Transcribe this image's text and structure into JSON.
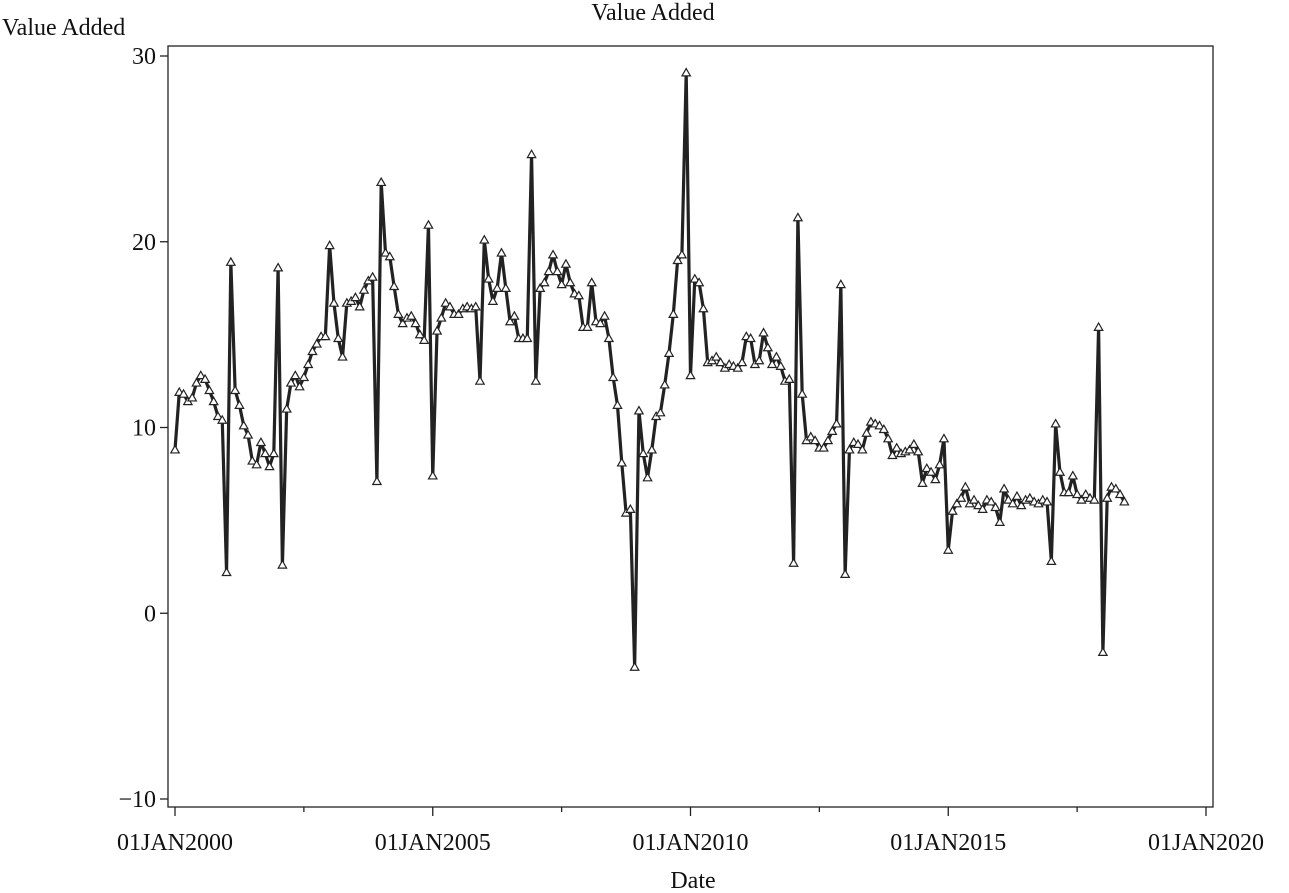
{
  "chart_data": {
    "type": "line",
    "title": "Value Added",
    "ylabel": "Value Added",
    "xlabel": "Date",
    "x_scale": "date",
    "xlim": [
      "2000-01-01",
      "2020-01-01"
    ],
    "ylim": [
      -10,
      30
    ],
    "yticks": [
      -10,
      0,
      10,
      20,
      30
    ],
    "xticks": [
      {
        "date": "2000-01-01",
        "label": "01JAN2000"
      },
      {
        "date": "2005-01-01",
        "label": "01JAN2005"
      },
      {
        "date": "2010-01-01",
        "label": "01JAN2010"
      },
      {
        "date": "2015-01-01",
        "label": "01JAN2015"
      },
      {
        "date": "2020-01-01",
        "label": "01JAN2020"
      }
    ],
    "grid": false,
    "legend": "none",
    "colors": {
      "line": "#222222",
      "marker_fill": "#ffffff"
    },
    "series": [
      {
        "x": [
          "2000-01",
          "2000-02",
          "2000-03",
          "2000-04",
          "2000-05",
          "2000-06",
          "2000-07",
          "2000-08",
          "2000-09",
          "2000-10",
          "2000-11",
          "2000-12",
          "2001-01",
          "2001-02",
          "2001-03",
          "2001-04",
          "2001-05",
          "2001-06",
          "2001-07",
          "2001-08",
          "2001-09",
          "2001-10",
          "2001-11",
          "2001-12",
          "2002-01",
          "2002-02",
          "2002-03",
          "2002-04",
          "2002-05",
          "2002-06",
          "2002-07",
          "2002-08",
          "2002-09",
          "2002-10",
          "2002-11",
          "2002-12",
          "2003-01",
          "2003-02",
          "2003-03",
          "2003-04",
          "2003-05",
          "2003-06",
          "2003-07",
          "2003-08",
          "2003-09",
          "2003-10",
          "2003-11",
          "2003-12",
          "2004-01",
          "2004-02",
          "2004-03",
          "2004-04",
          "2004-05",
          "2004-06",
          "2004-07",
          "2004-08",
          "2004-09",
          "2004-10",
          "2004-11",
          "2004-12",
          "2005-01",
          "2005-02",
          "2005-03",
          "2005-04",
          "2005-05",
          "2005-06",
          "2005-07",
          "2005-08",
          "2005-09",
          "2005-10",
          "2005-11",
          "2005-12",
          "2006-01",
          "2006-02",
          "2006-03",
          "2006-04",
          "2006-05",
          "2006-06",
          "2006-07",
          "2006-08",
          "2006-09",
          "2006-10",
          "2006-11",
          "2006-12",
          "2007-01",
          "2007-02",
          "2007-03",
          "2007-04",
          "2007-05",
          "2007-06",
          "2007-07",
          "2007-08",
          "2007-09",
          "2007-10",
          "2007-11",
          "2007-12",
          "2008-01",
          "2008-02",
          "2008-03",
          "2008-04",
          "2008-05",
          "2008-06",
          "2008-07",
          "2008-08",
          "2008-09",
          "2008-10",
          "2008-11",
          "2008-12",
          "2009-01",
          "2009-02",
          "2009-03",
          "2009-04",
          "2009-05",
          "2009-06",
          "2009-07",
          "2009-08",
          "2009-09",
          "2009-10",
          "2009-11",
          "2009-12",
          "2010-01",
          "2010-02",
          "2010-03",
          "2010-04",
          "2010-05",
          "2010-06",
          "2010-07",
          "2010-08",
          "2010-09",
          "2010-10",
          "2010-11",
          "2010-12",
          "2011-01",
          "2011-02",
          "2011-03",
          "2011-04",
          "2011-05",
          "2011-06",
          "2011-07",
          "2011-08",
          "2011-09",
          "2011-10",
          "2011-11",
          "2011-12",
          "2012-01",
          "2012-02",
          "2012-03",
          "2012-04",
          "2012-05",
          "2012-06",
          "2012-07",
          "2012-08",
          "2012-09",
          "2012-10",
          "2012-11",
          "2012-12",
          "2013-01",
          "2013-02",
          "2013-03",
          "2013-04",
          "2013-05",
          "2013-06",
          "2013-07",
          "2013-08",
          "2013-09",
          "2013-10",
          "2013-11",
          "2013-12",
          "2014-01",
          "2014-02",
          "2014-03",
          "2014-04",
          "2014-05",
          "2014-06",
          "2014-07",
          "2014-08",
          "2014-09",
          "2014-10",
          "2014-11",
          "2014-12",
          "2015-01",
          "2015-02",
          "2015-03",
          "2015-04",
          "2015-05",
          "2015-06",
          "2015-07",
          "2015-08",
          "2015-09",
          "2015-10",
          "2015-11",
          "2015-12",
          "2016-01",
          "2016-02",
          "2016-03",
          "2016-04",
          "2016-05",
          "2016-06",
          "2016-07",
          "2016-08",
          "2016-09",
          "2016-10",
          "2016-11",
          "2016-12",
          "2017-01",
          "2017-02",
          "2017-03",
          "2017-04",
          "2017-05",
          "2017-06",
          "2017-07",
          "2017-08",
          "2017-09",
          "2017-10",
          "2017-11",
          "2017-12",
          "2018-01",
          "2018-02",
          "2018-03",
          "2018-04",
          "2018-05",
          "2018-06"
        ],
        "values": [
          8.8,
          11.9,
          11.8,
          11.4,
          11.6,
          12.4,
          12.8,
          12.6,
          12.0,
          11.4,
          10.6,
          10.4,
          2.2,
          18.9,
          12.0,
          11.2,
          10.1,
          9.6,
          8.2,
          8.0,
          9.2,
          8.6,
          7.9,
          8.6,
          18.6,
          2.6,
          11.0,
          12.4,
          12.8,
          12.2,
          12.7,
          13.4,
          14.1,
          14.5,
          14.9,
          14.9,
          19.8,
          16.7,
          14.8,
          13.8,
          16.7,
          16.8,
          17.0,
          16.5,
          17.4,
          17.9,
          18.1,
          7.1,
          23.2,
          19.4,
          19.2,
          17.6,
          16.1,
          15.6,
          15.9,
          16.0,
          15.6,
          15.0,
          14.7,
          20.9,
          7.4,
          15.2,
          15.9,
          16.7,
          16.5,
          16.1,
          16.1,
          16.4,
          16.5,
          16.4,
          16.5,
          12.5,
          20.1,
          18.0,
          16.8,
          17.5,
          19.4,
          17.5,
          15.7,
          16.0,
          14.8,
          14.8,
          14.8,
          24.7,
          12.5,
          17.5,
          17.8,
          18.4,
          19.3,
          18.4,
          17.7,
          18.8,
          17.8,
          17.2,
          17.1,
          15.4,
          15.4,
          17.8,
          15.7,
          15.6,
          16.0,
          14.8,
          12.7,
          11.2,
          8.1,
          5.4,
          5.6,
          -2.9,
          10.9,
          8.6,
          7.3,
          8.8,
          10.6,
          10.8,
          12.3,
          14.0,
          16.1,
          19.0,
          19.3,
          29.1,
          12.8,
          18.0,
          17.8,
          16.4,
          13.5,
          13.6,
          13.8,
          13.5,
          13.2,
          13.4,
          13.3,
          13.2,
          13.5,
          14.9,
          14.8,
          13.4,
          13.6,
          15.1,
          14.3,
          13.4,
          13.8,
          13.3,
          12.5,
          12.6,
          2.7,
          21.3,
          11.8,
          9.3,
          9.5,
          9.3,
          8.9,
          8.9,
          9.3,
          9.8,
          10.2,
          17.7,
          2.1,
          8.8,
          9.2,
          9.1,
          8.8,
          9.7,
          10.3,
          10.2,
          10.1,
          9.9,
          9.4,
          8.5,
          8.9,
          8.6,
          8.7,
          8.8,
          9.1,
          8.7,
          7.0,
          7.8,
          7.6,
          7.2,
          8.0,
          9.4,
          3.4,
          5.5,
          5.9,
          6.2,
          6.8,
          5.9,
          6.1,
          5.8,
          5.6,
          6.1,
          6.0,
          5.7,
          4.9,
          6.7,
          6.1,
          5.9,
          6.3,
          5.8,
          6.1,
          6.2,
          6.0,
          5.9,
          6.1,
          6.0,
          2.8,
          10.2,
          7.6,
          6.5,
          6.5,
          7.4,
          6.4,
          6.1,
          6.4,
          6.2,
          6.1,
          15.4,
          -2.1,
          6.2,
          6.8,
          6.7,
          6.4,
          6.0
        ]
      }
    ]
  }
}
